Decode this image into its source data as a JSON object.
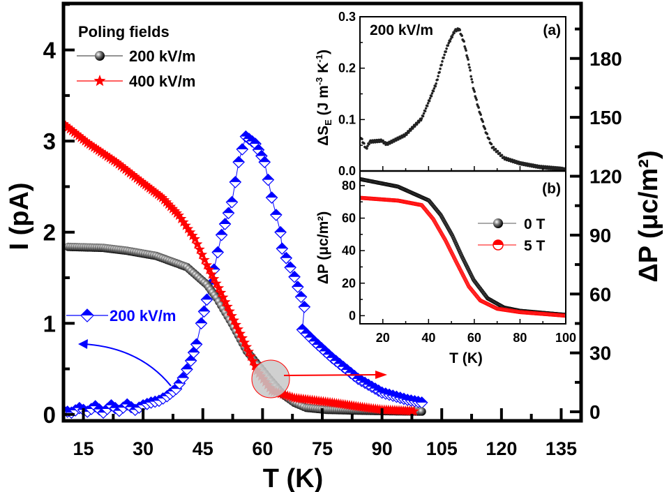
{
  "chart_data": [
    {
      "type": "scatter",
      "role": "main",
      "xlabel": "T (K)",
      "ylabel_left": "I (pA)",
      "ylabel_right": "ΔP (μc/m²)",
      "xlim": [
        10,
        140
      ],
      "ylim_left": [
        -0.07,
        4.51
      ],
      "ylim_right": [
        -4.6,
        208
      ],
      "xticks": [
        "15",
        "30",
        "45",
        "60",
        "75",
        "90",
        "105",
        "120",
        "135"
      ],
      "xtick_values": [
        15,
        30,
        45,
        60,
        75,
        90,
        105,
        120,
        135
      ],
      "yticks_left": [
        "0",
        "1",
        "2",
        "3",
        "4"
      ],
      "ytick_left_values": [
        0,
        1,
        2,
        3,
        4
      ],
      "yticks_right": [
        "0",
        "30",
        "60",
        "90",
        "120",
        "150",
        "180"
      ],
      "ytick_right_values": [
        0,
        30,
        60,
        90,
        120,
        150,
        180
      ],
      "grid": false,
      "legend": {
        "title": "Poling fields",
        "placement": "top-left"
      },
      "series": [
        {
          "name": "200 kV/m",
          "axis": "right",
          "color": "#000000",
          "marker": "sphere",
          "points": [
            [
              11.2,
              84
            ],
            [
              20,
              83.5
            ],
            [
              26,
              82
            ],
            [
              33.3,
              79.4
            ],
            [
              41,
              73.7
            ],
            [
              46,
              64.8
            ],
            [
              48.5,
              58
            ],
            [
              52.3,
              45
            ],
            [
              56,
              31
            ],
            [
              61.7,
              16.7
            ],
            [
              65,
              9
            ],
            [
              68,
              4.6
            ],
            [
              71,
              2
            ],
            [
              76,
              1
            ],
            [
              84,
              0.6
            ],
            [
              92,
              0.3
            ],
            [
              100,
              0.1
            ]
          ]
        },
        {
          "name": "400 kV/m",
          "axis": "right",
          "color": "#ff0000",
          "marker": "star",
          "points": [
            [
              10,
              146.6
            ],
            [
              16,
              137
            ],
            [
              23.3,
              127
            ],
            [
              29,
              118
            ],
            [
              34.8,
              109
            ],
            [
              39,
              100
            ],
            [
              43,
              88
            ],
            [
              46,
              74.7
            ],
            [
              49,
              63
            ],
            [
              52.3,
              48.8
            ],
            [
              56,
              33
            ],
            [
              58.6,
              21
            ],
            [
              62.3,
              10.7
            ],
            [
              68,
              7
            ],
            [
              77.5,
              4.6
            ],
            [
              84,
              2.6
            ],
            [
              90,
              1
            ],
            [
              98,
              0.3
            ]
          ]
        },
        {
          "name": "200 kV/m",
          "axis": "left",
          "color": "#0000ff",
          "marker": "half-filled-diamond",
          "points": [
            [
              10,
              0.04
            ],
            [
              12,
              0.02
            ],
            [
              14,
              0.07
            ],
            [
              16,
              0.03
            ],
            [
              18,
              0.09
            ],
            [
              20,
              0.02
            ],
            [
              22,
              0.1
            ],
            [
              24,
              0.04
            ],
            [
              26,
              0.11
            ],
            [
              28,
              0.05
            ],
            [
              30,
              0.1
            ],
            [
              32,
              0.13
            ],
            [
              34,
              0.15
            ],
            [
              36,
              0.2
            ],
            [
              38.3,
              0.28
            ],
            [
              40,
              0.4
            ],
            [
              42,
              0.59
            ],
            [
              43.4,
              0.77
            ],
            [
              44.6,
              1.0
            ],
            [
              46,
              1.26
            ],
            [
              47.8,
              1.59
            ],
            [
              49.7,
              1.97
            ],
            [
              52.3,
              2.33
            ],
            [
              54,
              2.77
            ],
            [
              55.8,
              3.05
            ],
            [
              58.2,
              2.97
            ],
            [
              60.5,
              2.77
            ],
            [
              62.3,
              2.38
            ],
            [
              64.5,
              2.0
            ],
            [
              64.9,
              1.82
            ],
            [
              68,
              1.51
            ],
            [
              70.5,
              1.18
            ],
            [
              70,
              0.93
            ],
            [
              73,
              0.8
            ],
            [
              77.5,
              0.62
            ],
            [
              84,
              0.39
            ],
            [
              90,
              0.24
            ],
            [
              96.4,
              0.16
            ],
            [
              100,
              0.13
            ]
          ]
        }
      ],
      "annotations": {
        "blue_label": "200 kV/m",
        "left_arrow": "points to left axis",
        "right_arrow": "points to right axis"
      }
    },
    {
      "type": "scatter",
      "role": "inset-a",
      "panel_label": "(a)",
      "note": "200 kV/m",
      "ylabel": "ΔS_E (J m^-3 K^-1)",
      "xlim": [
        10,
        100
      ],
      "ylim": [
        0,
        0.3
      ],
      "yticks": [
        "0.0",
        "0.1",
        "0.2",
        "0.3"
      ],
      "ytick_values": [
        0,
        0.1,
        0.2,
        0.3
      ],
      "series": [
        {
          "color": "#000000",
          "marker": "dot",
          "points": [
            [
              10.3,
              0.066
            ],
            [
              12.7,
              0.043
            ],
            [
              14.3,
              0.057
            ],
            [
              19.5,
              0.059
            ],
            [
              21.6,
              0.052
            ],
            [
              29.8,
              0.07
            ],
            [
              37,
              0.102
            ],
            [
              40.1,
              0.135
            ],
            [
              43.3,
              0.17
            ],
            [
              46.3,
              0.218
            ],
            [
              48.5,
              0.246
            ],
            [
              51.5,
              0.273
            ],
            [
              53.4,
              0.276
            ],
            [
              55.5,
              0.25
            ],
            [
              57.6,
              0.209
            ],
            [
              59.5,
              0.163
            ],
            [
              61.6,
              0.126
            ],
            [
              64.7,
              0.08
            ],
            [
              67.8,
              0.047
            ],
            [
              73,
              0.025
            ],
            [
              80,
              0.015
            ],
            [
              88.4,
              0.008
            ],
            [
              98.6,
              0.004
            ],
            [
              100,
              0.002
            ]
          ]
        }
      ]
    },
    {
      "type": "line",
      "role": "inset-b",
      "panel_label": "(b)",
      "xlabel": "T (K)",
      "ylabel": "ΔP (μc/m²)",
      "xlim": [
        10,
        100
      ],
      "ylim": [
        -5,
        89
      ],
      "xticks": [
        "20",
        "40",
        "60",
        "80",
        "100"
      ],
      "xtick_values": [
        20,
        40,
        60,
        80,
        100
      ],
      "yticks": [
        "0",
        "20",
        "40",
        "60",
        "80"
      ],
      "ytick_values": [
        0,
        20,
        40,
        60,
        80
      ],
      "legend": {
        "placement": "right"
      },
      "series": [
        {
          "name": "0 T",
          "color": "#000000",
          "points": [
            [
              10,
              84
            ],
            [
              26.6,
              79.4
            ],
            [
              40.1,
              70.9
            ],
            [
              45.3,
              62
            ],
            [
              50.4,
              49.3
            ],
            [
              54.6,
              36.4
            ],
            [
              59.7,
              22
            ],
            [
              65.8,
              10.7
            ],
            [
              73,
              5
            ],
            [
              80,
              3
            ],
            [
              100,
              0.5
            ]
          ]
        },
        {
          "name": "5 T",
          "color": "#ff0000",
          "points": [
            [
              10,
              72.5
            ],
            [
              26.6,
              70.8
            ],
            [
              37,
              68
            ],
            [
              42,
              59.5
            ],
            [
              47.3,
              46.6
            ],
            [
              52.5,
              32
            ],
            [
              57.6,
              18
            ],
            [
              62.6,
              9.4
            ],
            [
              70,
              4.3
            ],
            [
              80,
              2.2
            ],
            [
              100,
              0
            ]
          ]
        }
      ]
    }
  ]
}
